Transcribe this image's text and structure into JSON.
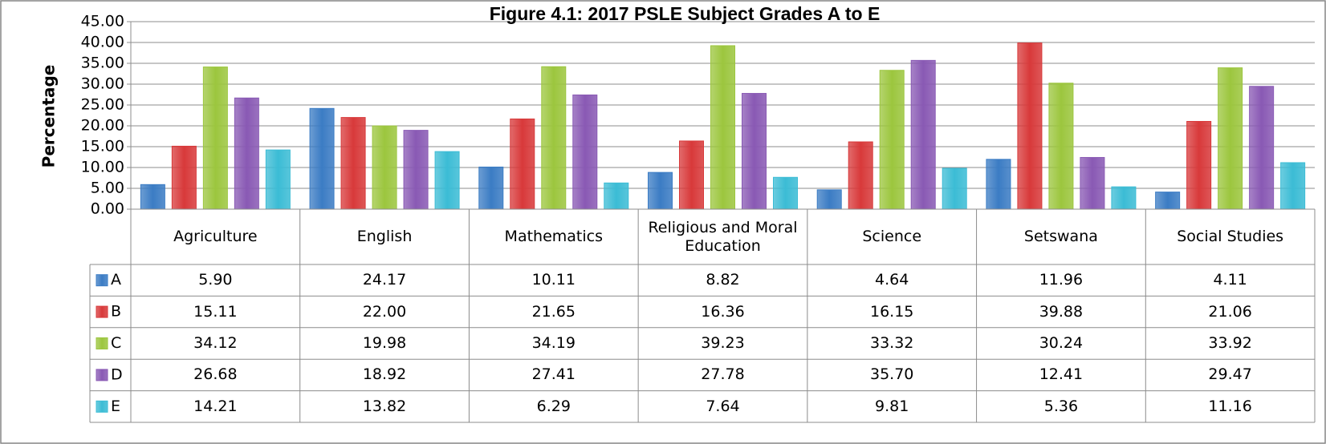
{
  "chart_data": {
    "type": "bar",
    "title": "Figure 4.1: 2017 PSLE Subject Grades A to E",
    "y_label": "Percentage",
    "categories": [
      "Agriculture",
      "English",
      "Mathematics",
      "Religious and Moral Education",
      "Science",
      "Setswana",
      "Social Studies"
    ],
    "series": [
      {
        "name": "A",
        "color": "#3b7cc4",
        "values": [
          5.9,
          24.17,
          10.11,
          8.82,
          4.64,
          11.96,
          4.11
        ],
        "value_labels": [
          "5.90",
          "24.17",
          "10.11",
          "8.82",
          "4.64",
          "11.96",
          "4.11"
        ]
      },
      {
        "name": "B",
        "color": "#d8393a",
        "values": [
          15.11,
          22.0,
          21.65,
          16.36,
          16.15,
          39.88,
          21.06
        ],
        "value_labels": [
          "15.11",
          "22.00",
          "21.65",
          "16.36",
          "16.15",
          "39.88",
          "21.06"
        ]
      },
      {
        "name": "C",
        "color": "#9cc63e",
        "values": [
          34.12,
          19.98,
          34.19,
          39.23,
          33.32,
          30.24,
          33.92
        ],
        "value_labels": [
          "34.12",
          "19.98",
          "34.19",
          "39.23",
          "33.32",
          "30.24",
          "33.92"
        ]
      },
      {
        "name": "D",
        "color": "#8959b4",
        "values": [
          26.68,
          18.92,
          27.41,
          27.78,
          35.7,
          12.41,
          29.47
        ],
        "value_labels": [
          "26.68",
          "18.92",
          "27.41",
          "27.78",
          "35.70",
          "12.41",
          "29.47"
        ]
      },
      {
        "name": "E",
        "color": "#3bbcd5",
        "values": [
          14.21,
          13.82,
          6.29,
          7.64,
          9.81,
          5.36,
          11.16
        ],
        "value_labels": [
          "14.21",
          "13.82",
          "6.29",
          "7.64",
          "9.81",
          "5.36",
          "11.16"
        ]
      }
    ],
    "ylim": [
      0,
      45
    ],
    "yticks": [
      {
        "value": 0,
        "label": "0.00"
      },
      {
        "value": 5,
        "label": "5.00"
      },
      {
        "value": 10,
        "label": "10.00"
      },
      {
        "value": 15,
        "label": "15.00"
      },
      {
        "value": 20,
        "label": "20.00"
      },
      {
        "value": 25,
        "label": "25.00"
      },
      {
        "value": 30,
        "label": "30.00"
      },
      {
        "value": 35,
        "label": "35.00"
      },
      {
        "value": 40,
        "label": "40.00"
      },
      {
        "value": 45,
        "label": "45.00"
      }
    ],
    "grid": true
  }
}
